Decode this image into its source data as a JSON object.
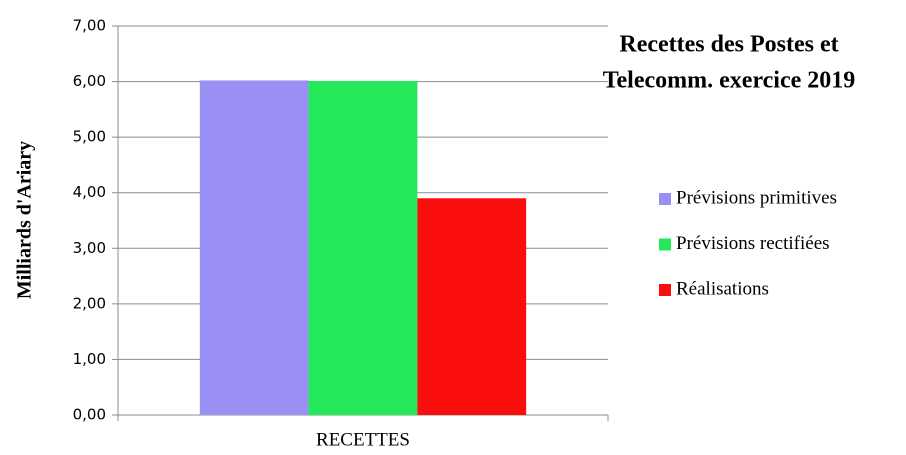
{
  "chart_data": {
    "type": "bar",
    "title": [
      "Recettes des Postes et",
      "Telecomm. exercice 2019"
    ],
    "y_label": "Milliards d'Ariary",
    "categories": [
      "RECETTES"
    ],
    "series": [
      {
        "name": "Prévisions primitives",
        "color": "#9a8ff2",
        "values": [
          6.02
        ]
      },
      {
        "name": "Prévisions rectifiées",
        "color": "#22e85a",
        "values": [
          6.01
        ]
      },
      {
        "name": "Réalisations",
        "color": "#fa0d0d",
        "values": [
          3.9
        ]
      }
    ],
    "ylim": [
      0,
      7
    ],
    "yticks": [
      {
        "value": 0,
        "label": "0,00"
      },
      {
        "value": 1,
        "label": "1,00"
      },
      {
        "value": 2,
        "label": "2,00"
      },
      {
        "value": 3,
        "label": "3,00"
      },
      {
        "value": 4,
        "label": "4,00"
      },
      {
        "value": 5,
        "label": "5,00"
      },
      {
        "value": 6,
        "label": "6,00"
      },
      {
        "value": 7,
        "label": "7,00"
      }
    ],
    "grid": true,
    "legend": "right"
  }
}
